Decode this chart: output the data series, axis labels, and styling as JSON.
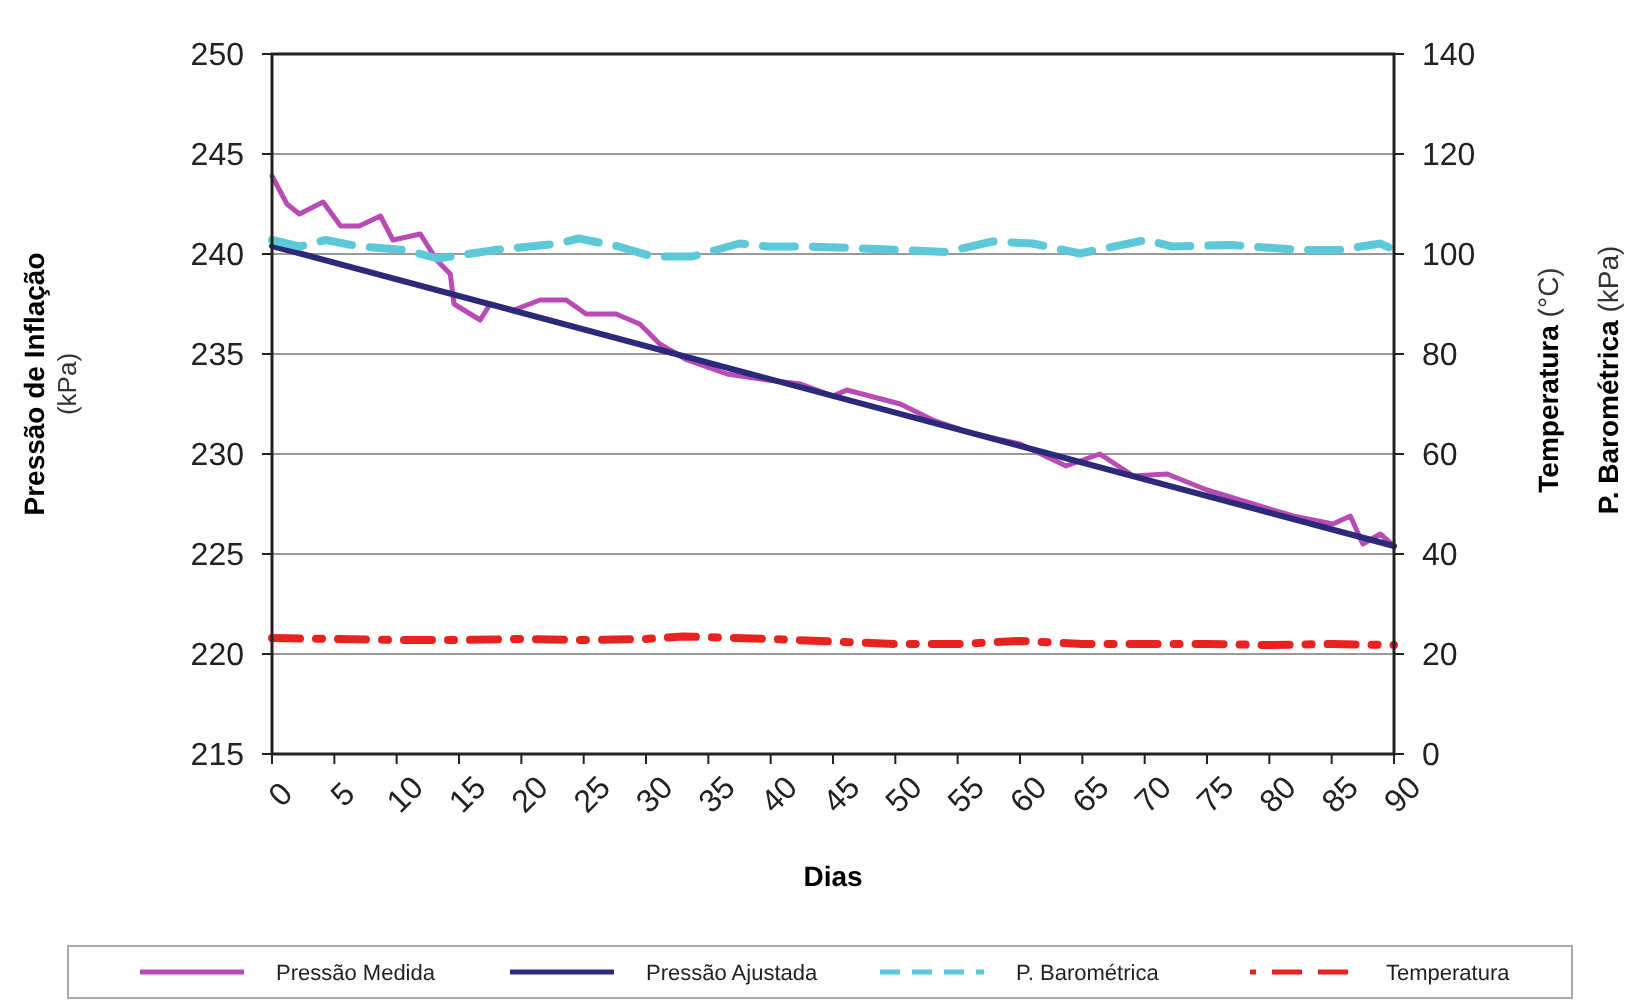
{
  "chart_data": {
    "type": "line",
    "xlabel": "Dias",
    "ylabel": "Pressão de Inflação (kPa)",
    "y2label": "Temperatura (°C)\nP. Barométrica (kPa)",
    "xlim": [
      0,
      90
    ],
    "xticks": [
      0,
      5,
      10,
      15,
      20,
      25,
      30,
      35,
      40,
      45,
      50,
      55,
      60,
      65,
      70,
      75,
      80,
      85,
      90
    ],
    "ylim": [
      215,
      250
    ],
    "yticks": [
      215,
      220,
      225,
      230,
      235,
      240,
      245,
      250
    ],
    "y2lim": [
      0,
      140
    ],
    "y2ticks": [
      0,
      20,
      40,
      60,
      80,
      100,
      120,
      140
    ],
    "grid": "y",
    "legend": "bottom",
    "marker": "none",
    "series": [
      {
        "name": "Pressão Medida",
        "color": "#b94bb5",
        "line_style": "solid",
        "x": [
          0,
          1.2,
          2.2,
          4.1,
          5.5,
          7,
          8.7,
          9.7,
          11.9,
          13.2,
          14.3,
          14.6,
          16.7,
          17.5,
          19.4,
          21.5,
          23.6,
          25.2,
          27.6,
          29.5,
          31.1,
          33.3,
          36.5,
          39.7,
          42.4,
          45,
          46.1,
          50.4,
          53,
          56.3,
          60,
          63.7,
          66.4,
          69.1,
          71.8,
          75,
          78.7,
          81.9,
          85.1,
          86.5,
          87.5,
          88.9,
          90
        ],
        "values": [
          243.9,
          242.5,
          242.0,
          242.6,
          241.4,
          241.4,
          241.9,
          240.7,
          241.0,
          239.7,
          239.0,
          237.5,
          236.7,
          237.5,
          237.2,
          237.7,
          237.7,
          237.0,
          237.0,
          236.5,
          235.5,
          234.7,
          234.0,
          233.7,
          233.5,
          232.9,
          233.2,
          232.5,
          231.7,
          231.0,
          230.5,
          229.4,
          230.0,
          228.9,
          229.0,
          228.2,
          227.5,
          226.9,
          226.5,
          226.9,
          225.5,
          226.0,
          225.4
        ]
      },
      {
        "name": "Pressão Ajustada",
        "color": "#2b2a7a",
        "line_style": "solid",
        "x": [
          0,
          90
        ],
        "values": [
          240.4,
          225.4
        ]
      },
      {
        "name": "P. Barométrica",
        "color": "#5cc8d8",
        "line_style": "dashed",
        "axis": "y2",
        "x": [
          0,
          2.2,
          4.3,
          7,
          10.7,
          13.3,
          17.9,
          23,
          24.6,
          27.8,
          30.5,
          33.7,
          37.5,
          39.7,
          43.1,
          50.4,
          54.1,
          57.8,
          61,
          64.8,
          70.1,
          72.2,
          77,
          82.4,
          85.6,
          88.9,
          90
        ],
        "values": [
          102.8,
          101.5,
          102.8,
          101.5,
          100.8,
          99.1,
          100.8,
          102.1,
          103.1,
          101.5,
          99.5,
          99.5,
          102.1,
          101.5,
          101.5,
          100.8,
          100.4,
          102.5,
          102.1,
          100.1,
          102.8,
          101.5,
          101.8,
          100.8,
          100.8,
          102.1,
          100.8
        ]
      },
      {
        "name": "Temperatura",
        "color": "#e8231f",
        "line_style": "dotted",
        "axis": "y2",
        "x": [
          0,
          5,
          10,
          15,
          20,
          25,
          30,
          33,
          40,
          45,
          50,
          55,
          60,
          65,
          70,
          75,
          80,
          85,
          90
        ],
        "values": [
          23.2,
          23,
          22.8,
          22.8,
          23,
          22.8,
          23,
          23.5,
          23,
          22.5,
          22,
          22,
          22.6,
          22,
          22,
          22,
          21.8,
          22,
          21.8
        ]
      }
    ]
  }
}
